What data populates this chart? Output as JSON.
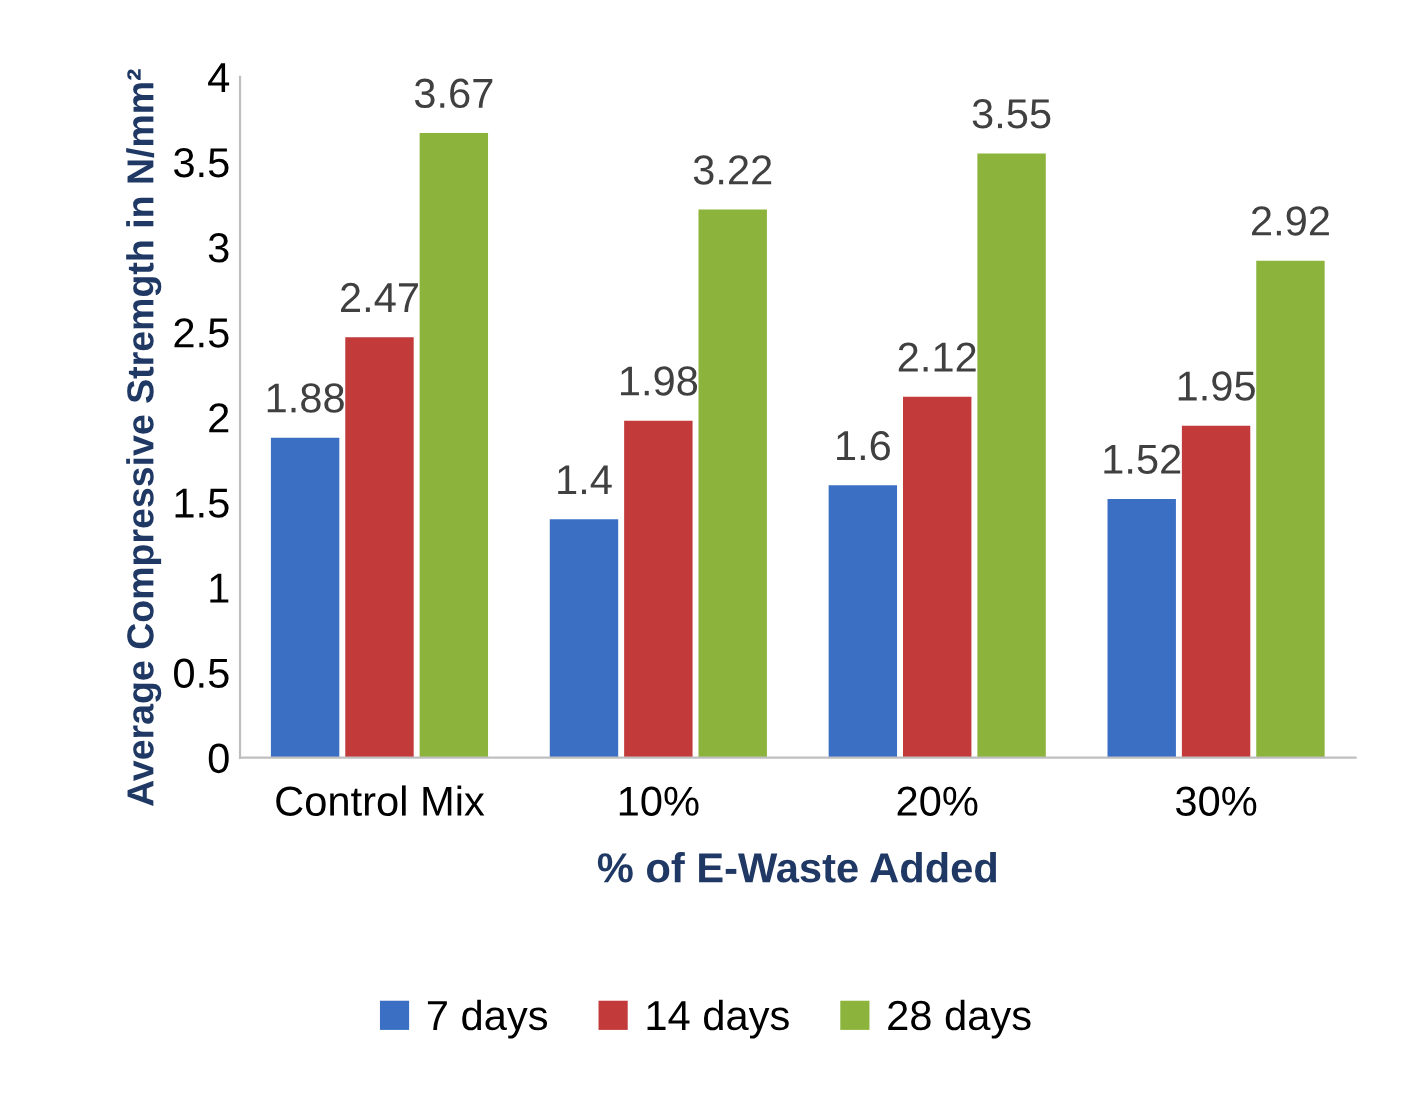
{
  "chart_data": {
    "type": "bar",
    "xlabel": "% of E-Waste Added",
    "ylabel": "Average Compressive Stremgth in N/mm²",
    "categories": [
      "Control Mix",
      "10%",
      "20%",
      "30%"
    ],
    "series": [
      {
        "name": "7 days",
        "color": "#3b6fc4",
        "values": [
          1.88,
          1.4,
          1.6,
          1.52
        ]
      },
      {
        "name": "14 days",
        "color": "#c23a3a",
        "values": [
          2.47,
          1.98,
          2.12,
          1.95
        ]
      },
      {
        "name": "28 days",
        "color": "#8cb43c",
        "values": [
          3.67,
          3.22,
          3.55,
          2.92
        ]
      }
    ],
    "ylim": [
      0,
      4
    ],
    "yticks": [
      0,
      0.5,
      1,
      1.5,
      2,
      2.5,
      3,
      3.5,
      4
    ],
    "grid": false,
    "legend": "bottom",
    "data_labels": true
  }
}
